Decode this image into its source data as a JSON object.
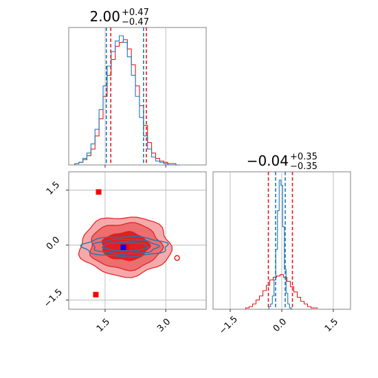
{
  "colors": {
    "red": "#e41a1c",
    "red_light": "#f4a6a6",
    "red_mid": "#ec6b6b",
    "blue": "#1f77b4",
    "marker_blue": "#0000ff",
    "marker_red": "#ff0000",
    "grid": "#b0b0b0",
    "frame": "#808080"
  },
  "chart_data": [
    {
      "type": "histogram",
      "panel": "marginal-x",
      "title": {
        "value": "2.00",
        "upper": "+0.47",
        "lower": "−0.47"
      },
      "xlim": [
        0.6,
        4.0
      ],
      "x_ticks": [
        1.5,
        3.0
      ],
      "grid": true,
      "quantiles": {
        "blue": [
          1.53,
          2.45
        ],
        "red": [
          1.64,
          2.52
        ]
      },
      "series": [
        {
          "color": "red",
          "x": [
            0.8,
            0.9,
            1.0,
            1.1,
            1.2,
            1.3,
            1.4,
            1.5,
            1.6,
            1.7,
            1.8,
            1.9,
            2.0,
            2.1,
            2.2,
            2.3,
            2.4,
            2.5,
            2.6,
            2.7,
            2.8,
            2.9,
            3.0,
            3.1,
            3.2,
            3.3
          ],
          "values": [
            0.01,
            0.02,
            0.04,
            0.07,
            0.12,
            0.22,
            0.35,
            0.52,
            0.68,
            0.8,
            0.9,
            0.93,
            0.95,
            0.88,
            0.76,
            0.6,
            0.45,
            0.3,
            0.17,
            0.09,
            0.05,
            0.03,
            0.02,
            0.01,
            0.01,
            0.0
          ]
        },
        {
          "color": "blue",
          "x": [
            0.8,
            0.9,
            1.0,
            1.1,
            1.2,
            1.3,
            1.4,
            1.5,
            1.6,
            1.7,
            1.8,
            1.9,
            2.0,
            2.1,
            2.2,
            2.3,
            2.4,
            2.5,
            2.6,
            2.7,
            2.8,
            2.9,
            3.0,
            3.1,
            3.2,
            3.3
          ],
          "values": [
            0.01,
            0.02,
            0.05,
            0.09,
            0.16,
            0.27,
            0.42,
            0.6,
            0.75,
            0.86,
            0.94,
            0.98,
            0.93,
            0.82,
            0.68,
            0.52,
            0.36,
            0.22,
            0.12,
            0.06,
            0.03,
            0.02,
            0.01,
            0.0,
            0.0,
            0.0
          ]
        }
      ]
    },
    {
      "type": "histogram",
      "panel": "marginal-y",
      "title": {
        "value": "−0.04",
        "upper": "+0.35",
        "lower": "−0.35"
      },
      "xlim": [
        -2.0,
        2.0
      ],
      "x_ticks": [
        -1.5,
        0.0,
        1.5
      ],
      "grid": true,
      "quantiles": {
        "blue": [
          -0.18,
          0.1
        ],
        "red": [
          -0.39,
          0.31
        ]
      },
      "series": [
        {
          "color": "red",
          "x": [
            -1.0,
            -0.9,
            -0.8,
            -0.7,
            -0.6,
            -0.5,
            -0.4,
            -0.3,
            -0.2,
            -0.1,
            0.0,
            0.1,
            0.2,
            0.3,
            0.4,
            0.5,
            0.6,
            0.7,
            0.8,
            0.9,
            1.0
          ],
          "values": [
            0.01,
            0.02,
            0.04,
            0.07,
            0.1,
            0.14,
            0.18,
            0.22,
            0.24,
            0.25,
            0.26,
            0.24,
            0.21,
            0.17,
            0.13,
            0.09,
            0.06,
            0.04,
            0.02,
            0.01,
            0.01
          ]
        },
        {
          "color": "blue",
          "x": [
            -0.4,
            -0.35,
            -0.3,
            -0.25,
            -0.2,
            -0.15,
            -0.1,
            -0.05,
            0.0,
            0.05,
            0.1,
            0.15,
            0.2,
            0.25,
            0.3
          ],
          "values": [
            0.0,
            0.02,
            0.04,
            0.1,
            0.22,
            0.45,
            0.74,
            0.97,
            0.93,
            0.62,
            0.3,
            0.12,
            0.04,
            0.01,
            0.0
          ]
        }
      ]
    },
    {
      "type": "contour",
      "panel": "joint",
      "xlim": [
        0.6,
        4.0
      ],
      "ylim": [
        -1.75,
        2.0
      ],
      "x_ticks": [
        1.5,
        3.0
      ],
      "y_ticks": [
        -1.5,
        0.0,
        1.5
      ],
      "grid": true,
      "red_levels": [
        {
          "cx": 2.0,
          "cy": -0.03,
          "rx": 0.58,
          "ry": 0.38,
          "fill": "red"
        },
        {
          "cx": 2.0,
          "cy": -0.03,
          "rx": 0.88,
          "ry": 0.63,
          "fill": "red_mid"
        },
        {
          "cx": 2.0,
          "cy": -0.03,
          "rx": 1.12,
          "ry": 0.81,
          "fill": "red_light"
        }
      ],
      "blue_levels": [
        {
          "cx": 2.0,
          "cy": -0.04,
          "rx": 0.55,
          "ry": 0.12
        },
        {
          "cx": 2.0,
          "cy": -0.04,
          "rx": 0.8,
          "ry": 0.2
        },
        {
          "cx": 2.0,
          "cy": -0.04,
          "rx": 1.05,
          "ry": 0.27
        }
      ],
      "markers": [
        {
          "color": "marker_red",
          "x": 1.34,
          "y": 1.45
        },
        {
          "color": "marker_red",
          "x": 1.27,
          "y": -1.35
        },
        {
          "color": "marker_red",
          "x": 2.02,
          "y": -0.06
        },
        {
          "color": "marker_blue",
          "x": 1.95,
          "y": -0.06
        }
      ],
      "outlier_island": {
        "x": 3.28,
        "y": -0.35
      }
    }
  ]
}
